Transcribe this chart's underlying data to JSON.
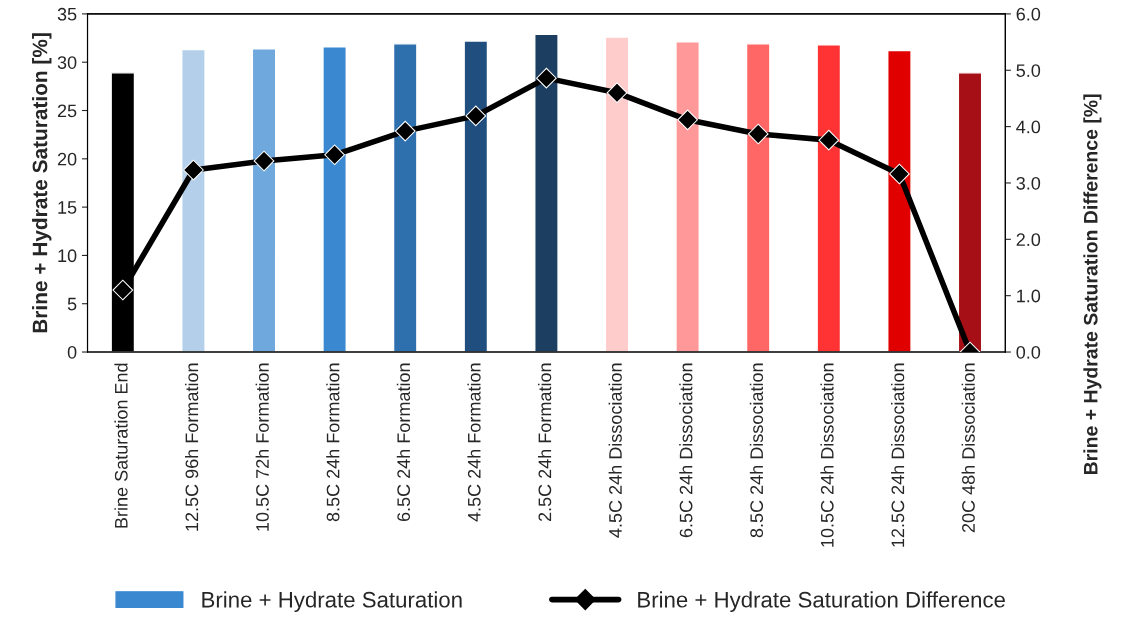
{
  "chart_data": {
    "type": "bar",
    "categories": [
      "Brine Saturation End",
      "12.5C 96h Formation",
      "10.5C 72h Formation",
      "8.5C 24h Formation",
      "6.5C 24h Formation",
      "4.5C 24h Formation",
      "2.5C 24h Formation",
      "4.5C 24h Dissociation",
      "6.5C 24h Dissociation",
      "8.5C 24h Dissociation",
      "10.5C 24h Dissociation",
      "12.5C 24h Dissociation",
      "20C 48h Dissociation"
    ],
    "series": [
      {
        "name": "Brine + Hydrate Saturation",
        "color": "#3a88d0",
        "colors": [
          "#000000",
          "#b4cfea",
          "#6fa8dc",
          "#3a88d0",
          "#2e6fae",
          "#1f4e7f",
          "#1c3f61",
          "#ffcccc",
          "#ff9999",
          "#ff6666",
          "#ff3333",
          "#e00000",
          "#a50f15"
        ],
        "values": [
          28.9,
          31.3,
          31.4,
          31.6,
          31.9,
          32.2,
          32.9,
          32.6,
          32.1,
          31.9,
          31.8,
          31.2,
          28.9
        ]
      },
      {
        "name": "Brine + Hydrate Saturation Difference",
        "type": "line",
        "axis": "y2",
        "color": "#000000",
        "marker": "diamond",
        "line_style": "solid",
        "values": [
          1.1,
          3.23,
          3.39,
          3.5,
          3.92,
          4.19,
          4.86,
          4.6,
          4.12,
          3.87,
          3.76,
          3.16,
          0.0
        ]
      }
    ],
    "ylabel": "Brine + Hydrate Saturation [%]",
    "y2label": "Brine + Hydrate Saturation Difference [%]",
    "ylim": [
      0,
      35
    ],
    "yticks": [
      0,
      5,
      10,
      15,
      20,
      25,
      30,
      35
    ],
    "y2lim": [
      0,
      6
    ],
    "y2ticks": [
      {
        "value": 0,
        "label": "0.0"
      },
      {
        "value": 1,
        "label": "1.0"
      },
      {
        "value": 2,
        "label": "2.0"
      },
      {
        "value": 3,
        "label": "3.0"
      },
      {
        "value": 4,
        "label": "4.0"
      },
      {
        "value": 5,
        "label": "5.0"
      },
      {
        "value": 6,
        "label": "6.0"
      }
    ],
    "grid": false,
    "legend": "bottom"
  }
}
